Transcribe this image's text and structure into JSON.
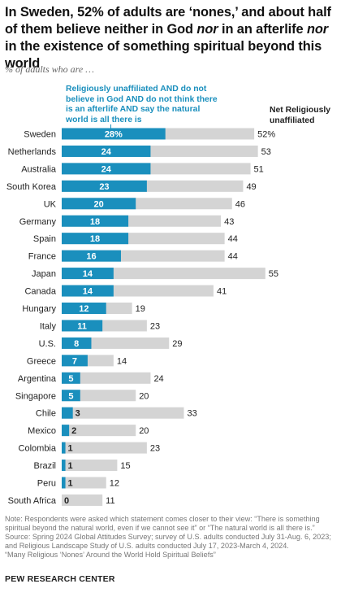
{
  "title_parts": {
    "p1": "In Sweden, 52% of adults are ‘nones,’ and about half of them believe neither in God ",
    "p2": "nor",
    "p3": " in an afterlife ",
    "p4": "nor",
    "p5": " in the existence of something spiritual beyond this world"
  },
  "subtitle": "% of adults who are …",
  "legend": {
    "blue_label": "Religiously unaffiliated AND do not believe in God AND do not think there is an afterlife AND say the natural world is all there is",
    "net_label": "Net Religiously unaffiliated"
  },
  "colors": {
    "blue": "#1a8fbd",
    "gray": "#d4d4d4",
    "blue_text": "#1a8fbd"
  },
  "chart_data": {
    "type": "bar",
    "orientation": "horizontal",
    "categories": [
      "Sweden",
      "Netherlands",
      "Australia",
      "South Korea",
      "UK",
      "Germany",
      "Spain",
      "France",
      "Japan",
      "Canada",
      "Hungary",
      "Italy",
      "U.S.",
      "Greece",
      "Argentina",
      "Singapore",
      "Chile",
      "Mexico",
      "Colombia",
      "Brazil",
      "Peru",
      "South Africa"
    ],
    "series": [
      {
        "name": "Religiously unaffiliated AND do not believe in God AND do not think there is an afterlife AND say the natural world is all there is",
        "values": [
          28,
          24,
          24,
          23,
          20,
          18,
          18,
          16,
          14,
          14,
          12,
          11,
          8,
          7,
          5,
          5,
          3,
          2,
          1,
          1,
          1,
          0
        ],
        "labels": [
          "28%",
          "24",
          "24",
          "23",
          "20",
          "18",
          "18",
          "16",
          "14",
          "14",
          "12",
          "11",
          "8",
          "7",
          "5",
          "5",
          "3",
          "2",
          "1",
          "1",
          "1",
          "0"
        ]
      },
      {
        "name": "Net Religiously unaffiliated",
        "values": [
          52,
          53,
          51,
          49,
          46,
          43,
          44,
          44,
          55,
          41,
          19,
          23,
          29,
          14,
          24,
          20,
          33,
          20,
          23,
          15,
          12,
          11
        ],
        "labels": [
          "52%",
          "53",
          "51",
          "49",
          "46",
          "43",
          "44",
          "44",
          "55",
          "41",
          "19",
          "23",
          "29",
          "14",
          "24",
          "20",
          "33",
          "20",
          "23",
          "15",
          "12",
          "11"
        ]
      }
    ]
  },
  "notes": {
    "note": "Note: Respondents were asked which statement comes closer to their view: “There is something spiritual beyond the natural world, even if we cannot see it” or “The natural world is all there is.”",
    "source": "Source: Spring 2024 Global Attitudes Survey; survey of U.S. adults conducted July 31-Aug. 6, 2023; and Religious Landscape Study of U.S. adults conducted July 17, 2023-March 4, 2024.",
    "report": "“Many Religious ‘Nones’ Around the World Hold Spiritual Beliefs”"
  },
  "footer": "PEW RESEARCH CENTER"
}
